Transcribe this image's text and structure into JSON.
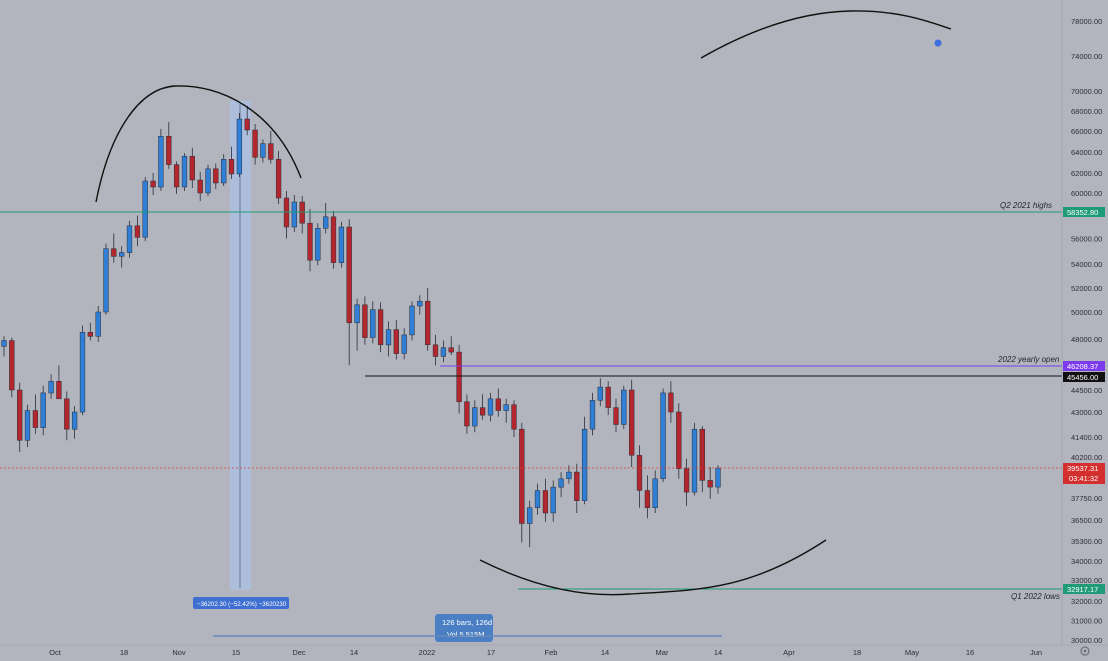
{
  "colors": {
    "background": "#b2b5be",
    "up": "#2f7fd6",
    "down": "#b4262d",
    "green_line": "#1f9c77",
    "purple_line": "#7c3aed",
    "black_line": "#111111",
    "current_price": "#e53935",
    "measure_fill": "#a9c2e6",
    "tooltip_bg": "#4a7fc4"
  },
  "chart_data": {
    "type": "candlestick",
    "price_axis": {
      "labels": [
        "78000.00",
        "74000.00",
        "70000.00",
        "68000.00",
        "66000.00",
        "64000.00",
        "62000.00",
        "60000.00",
        "58000.00",
        "56000.00",
        "54000.00",
        "52000.00",
        "50000.00",
        "48000.00",
        "44500.00",
        "43000.00",
        "41400.00",
        "40200.00",
        "37750.00",
        "36500.00",
        "35300.00",
        "34000.00",
        "33000.00",
        "32000.00",
        "31000.00",
        "30000.00"
      ],
      "ylim": [
        30000,
        80000
      ]
    },
    "time_axis": {
      "labels": [
        "Oct",
        "18",
        "Nov",
        "15",
        "Dec",
        "14",
        "2022",
        "17",
        "Feb",
        "14",
        "Mar",
        "14",
        "Apr",
        "18",
        "May",
        "16",
        "Jun"
      ]
    },
    "candles_ohlc_sample": [
      [
        47500,
        48200,
        46800,
        47900
      ],
      [
        47900,
        48100,
        44000,
        44500
      ],
      [
        44500,
        45000,
        40500,
        41200
      ],
      [
        41200,
        43500,
        40800,
        43100
      ],
      [
        43100,
        44200,
        41600,
        42000
      ],
      [
        42000,
        44800,
        41500,
        44300
      ],
      [
        44300,
        45600,
        43900,
        45100
      ],
      [
        45100,
        46200,
        44600,
        43900
      ],
      [
        43900,
        44400,
        41200,
        41900
      ],
      [
        41900,
        43400,
        41300,
        43000
      ],
      [
        43000,
        49000,
        42800,
        48500
      ],
      [
        48500,
        49200,
        47900,
        48200
      ],
      [
        48200,
        50500,
        47800,
        50000
      ],
      [
        50000,
        55600,
        49800,
        55200
      ],
      [
        55200,
        56400,
        54100,
        54600
      ],
      [
        54600,
        55400,
        53700,
        54900
      ],
      [
        54900,
        57400,
        54500,
        57000
      ],
      [
        57000,
        57800,
        55400,
        56100
      ],
      [
        56100,
        61600,
        55800,
        61200
      ],
      [
        61200,
        62000,
        59800,
        60600
      ],
      [
        60600,
        66200,
        60200,
        65500
      ],
      [
        65500,
        66900,
        62400,
        62800
      ],
      [
        62800,
        63100,
        59900,
        60600
      ],
      [
        60600,
        63900,
        60200,
        63600
      ],
      [
        63600,
        64400,
        60500,
        61300
      ],
      [
        61300,
        62100,
        59200,
        60000
      ],
      [
        60000,
        62800,
        59700,
        62400
      ],
      [
        62400,
        62900,
        60400,
        61000
      ],
      [
        61000,
        63800,
        60700,
        63300
      ],
      [
        63300,
        64500,
        61400,
        61900
      ],
      [
        61900,
        67800,
        61600,
        67200
      ],
      [
        67200,
        68500,
        65600,
        66100
      ],
      [
        66100,
        66700,
        62800,
        63500
      ],
      [
        63500,
        65200,
        63000,
        64800
      ],
      [
        64800,
        66000,
        62900,
        63300
      ],
      [
        63300,
        64100,
        58900,
        59500
      ],
      [
        59500,
        60200,
        56000,
        56900
      ],
      [
        56900,
        59800,
        56500,
        59100
      ],
      [
        59100,
        59700,
        56400,
        57200
      ],
      [
        57200,
        58400,
        53400,
        54300
      ],
      [
        54300,
        57200,
        53900,
        56800
      ],
      [
        56800,
        59000,
        56400,
        57700
      ],
      [
        57700,
        58200,
        53600,
        54100
      ],
      [
        54100,
        57300,
        53700,
        56900
      ],
      [
        56900,
        57500,
        46200,
        49200
      ],
      [
        49200,
        51100,
        47200,
        50600
      ],
      [
        50600,
        51300,
        47600,
        48100
      ],
      [
        48100,
        50900,
        47700,
        50200
      ],
      [
        50200,
        50800,
        47100,
        47600
      ],
      [
        47600,
        49300,
        46800,
        48700
      ],
      [
        48700,
        49400,
        46600,
        47000
      ],
      [
        47000,
        48800,
        46600,
        48300
      ],
      [
        48300,
        50900,
        47900,
        50500
      ],
      [
        50500,
        51400,
        49800,
        50900
      ],
      [
        50900,
        52000,
        47200,
        47600
      ],
      [
        47600,
        48300,
        46200,
        46800
      ],
      [
        46800,
        47900,
        46400,
        47400
      ],
      [
        47400,
        48200,
        46900,
        47100
      ],
      [
        47100,
        47600,
        42900,
        43700
      ],
      [
        43700,
        44200,
        41600,
        42100
      ],
      [
        42100,
        43800,
        41700,
        43300
      ],
      [
        43300,
        44200,
        42500,
        42800
      ],
      [
        42800,
        44300,
        42400,
        43900
      ],
      [
        43900,
        44600,
        42700,
        43100
      ],
      [
        43100,
        43900,
        42300,
        43500
      ],
      [
        43500,
        43800,
        41400,
        41900
      ],
      [
        41900,
        42300,
        35200,
        36300
      ],
      [
        36300,
        37600,
        34900,
        37200
      ],
      [
        37200,
        38600,
        36800,
        38200
      ],
      [
        38200,
        38900,
        36400,
        36900
      ],
      [
        36900,
        38800,
        36400,
        38400
      ],
      [
        38400,
        39300,
        37800,
        38900
      ],
      [
        38900,
        39700,
        38600,
        39300
      ],
      [
        39300,
        39800,
        36900,
        37600
      ],
      [
        37600,
        42700,
        37400,
        41900
      ],
      [
        41900,
        44300,
        41500,
        43800
      ],
      [
        43800,
        45300,
        43400,
        44700
      ],
      [
        44700,
        45100,
        42800,
        43300
      ],
      [
        43300,
        43900,
        41700,
        42200
      ],
      [
        42200,
        44800,
        41900,
        44500
      ],
      [
        44500,
        45200,
        39600,
        40300
      ],
      [
        40300,
        40900,
        37200,
        38200
      ],
      [
        38200,
        39100,
        36600,
        37200
      ],
      [
        37200,
        39400,
        36900,
        38900
      ],
      [
        38900,
        44600,
        38700,
        44300
      ],
      [
        44300,
        45100,
        42300,
        43000
      ],
      [
        43000,
        43600,
        38900,
        39500
      ],
      [
        39500,
        40100,
        37300,
        38100
      ],
      [
        38100,
        42300,
        37900,
        41900
      ],
      [
        41900,
        42100,
        38100,
        38800
      ],
      [
        38800,
        39600,
        37700,
        38400
      ],
      [
        38400,
        39700,
        38000,
        39537
      ]
    ],
    "current_price": 39537.31
  },
  "annotations": {
    "q2_highs": {
      "text": "Q2 2021 highs",
      "price_tag": "58352.80",
      "price": 58352.8
    },
    "yearly_open": {
      "text": "2022 yearly open",
      "price_tag": "46208.37",
      "price": 46208.37
    },
    "black_level": {
      "price_tag": "45456.00",
      "price": 45456
    },
    "q1_lows": {
      "text": "Q1 2022 lows",
      "price_tag": "32917.17",
      "price": 32917.17
    },
    "current": {
      "price_tag": "39537.31",
      "countdown": "03:41:32"
    },
    "measure": {
      "label": "−36202.30 (−52.42%) −3620230"
    },
    "date_range": {
      "line1": "126 bars, 126d",
      "line2": "Vol 5.515M"
    }
  }
}
